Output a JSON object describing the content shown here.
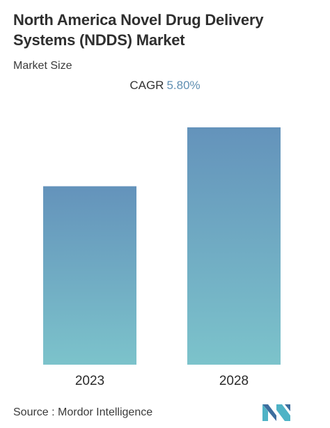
{
  "header": {
    "title": "North America Novel Drug Delivery Systems (NDDS) Market",
    "subtitle": "Market Size"
  },
  "cagr": {
    "label": "CAGR",
    "value": "5.80%"
  },
  "chart_data": {
    "type": "bar",
    "categories": [
      "2023",
      "2028"
    ],
    "values": [
      1,
      1.33
    ],
    "ylim": [
      0,
      1.33
    ],
    "title": "North America Novel Drug Delivery Systems (NDDS) Market",
    "subtitle": "Market Size",
    "grid": false,
    "legend": "none",
    "bar_colors": {
      "top": "#6493bb",
      "bottom": "#7cc3cb"
    }
  },
  "footer": {
    "source_label": "Source :",
    "source_name": "Mordor Intelligence",
    "logo_icon": "mordor-intelligence-logo-icon",
    "logo_colors": [
      "#3d6e9e",
      "#4fb3c6"
    ]
  }
}
